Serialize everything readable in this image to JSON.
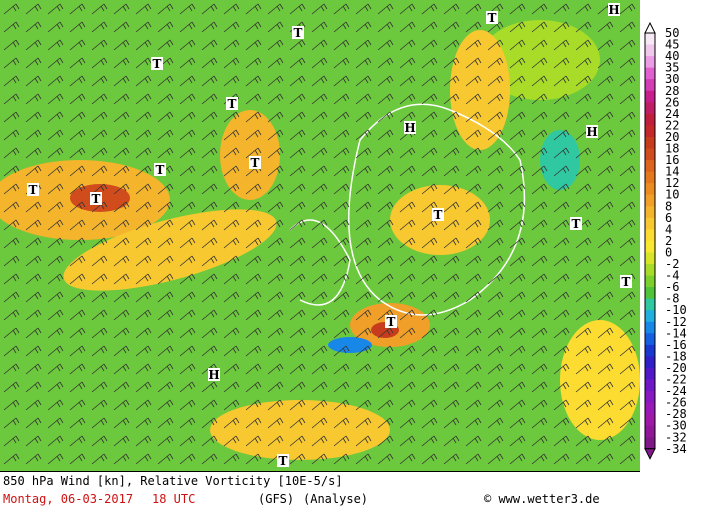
{
  "map": {
    "pressure_labels": [
      "T",
      "H",
      "T",
      "T",
      "T",
      "H",
      "H",
      "T",
      "T",
      "T",
      "T",
      "T",
      "T",
      "T",
      "T",
      "H",
      "T"
    ]
  },
  "colorbar": {
    "labels": [
      50,
      45,
      40,
      35,
      30,
      28,
      26,
      24,
      22,
      20,
      18,
      16,
      14,
      12,
      10,
      8,
      6,
      4,
      2,
      0,
      -2,
      -4,
      -6,
      -8,
      -10,
      -12,
      -14,
      -16,
      -18,
      -20,
      -22,
      -24,
      -26,
      -28,
      -30,
      -32,
      -34
    ],
    "colors": [
      "#f6e8f4",
      "#f0c8ec",
      "#ec9ce4",
      "#e060d0",
      "#d43cb4",
      "#c81e8c",
      "#c01e64",
      "#c01e3c",
      "#c42828",
      "#c83c1e",
      "#d04c1c",
      "#dc641c",
      "#e4781c",
      "#ec8c20",
      "#f0a028",
      "#f4b42c",
      "#f8c830",
      "#fcdc30",
      "#f8e830",
      "#d8e428",
      "#a8dc28",
      "#7cd02c",
      "#50c438",
      "#30c8a0",
      "#20b0e0",
      "#1888e8",
      "#1460e0",
      "#1838d0",
      "#3020c8",
      "#5018c8",
      "#7018c8",
      "#8818c0",
      "#9818b8",
      "#a018a8",
      "#901898",
      "#801888"
    ]
  },
  "footer": {
    "title": "850 hPa Wind [kn], Relative Vorticity [10E-5/s]",
    "date": "Montag, 06-03-2017",
    "time": "18 UTC",
    "model": "(GFS)",
    "run": "(Analyse)",
    "credit": "© www.wetter3.de"
  }
}
